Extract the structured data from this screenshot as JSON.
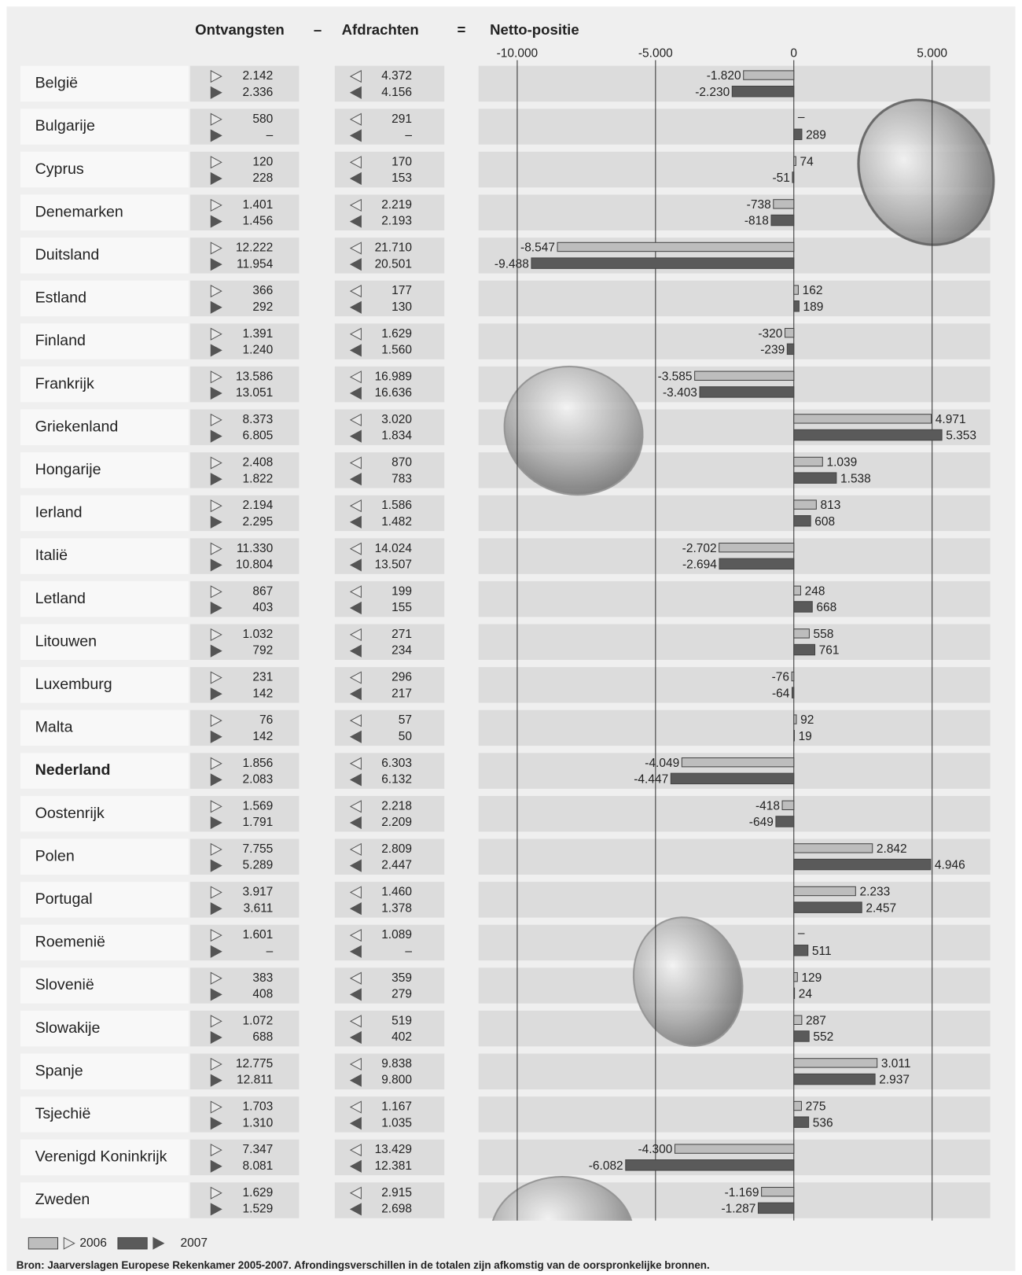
{
  "chart_data": {
    "type": "bar",
    "orientation": "horizontal",
    "headers": {
      "receipts": "Ontvangsten",
      "minus": "–",
      "payments": "Afdrachten",
      "equals": "=",
      "net": "Netto-positie"
    },
    "categories": [
      "België",
      "Bulgarije",
      "Cyprus",
      "Denemarken",
      "Duitsland",
      "Estland",
      "Finland",
      "Frankrijk",
      "Griekenland",
      "Hongarije",
      "Ierland",
      "Italië",
      "Letland",
      "Litouwen",
      "Luxemburg",
      "Malta",
      "Nederland",
      "Oostenrijk",
      "Polen",
      "Portugal",
      "Roemenië",
      "Slovenië",
      "Slowakije",
      "Spanje",
      "Tsjechië",
      "Verenigd Koninkrijk",
      "Zweden"
    ],
    "bold_category": "Nederland",
    "receipts": [
      [
        "2.142",
        "2.336"
      ],
      [
        "580",
        "–"
      ],
      [
        "120",
        "228"
      ],
      [
        "1.401",
        "1.456"
      ],
      [
        "12.222",
        "11.954"
      ],
      [
        "366",
        "292"
      ],
      [
        "1.391",
        "1.240"
      ],
      [
        "13.586",
        "13.051"
      ],
      [
        "8.373",
        "6.805"
      ],
      [
        "2.408",
        "1.822"
      ],
      [
        "2.194",
        "2.295"
      ],
      [
        "11.330",
        "10.804"
      ],
      [
        "867",
        "403"
      ],
      [
        "1.032",
        "792"
      ],
      [
        "231",
        "142"
      ],
      [
        "76",
        "142"
      ],
      [
        "1.856",
        "2.083"
      ],
      [
        "1.569",
        "1.791"
      ],
      [
        "7.755",
        "5.289"
      ],
      [
        "3.917",
        "3.611"
      ],
      [
        "1.601",
        "–"
      ],
      [
        "383",
        "408"
      ],
      [
        "1.072",
        "688"
      ],
      [
        "12.775",
        "12.811"
      ],
      [
        "1.703",
        "1.310"
      ],
      [
        "7.347",
        "8.081"
      ],
      [
        "1.629",
        "1.529"
      ]
    ],
    "payments": [
      [
        "4.372",
        "4.156"
      ],
      [
        "291",
        "–"
      ],
      [
        "170",
        "153"
      ],
      [
        "2.219",
        "2.193"
      ],
      [
        "21.710",
        "20.501"
      ],
      [
        "177",
        "130"
      ],
      [
        "1.629",
        "1.560"
      ],
      [
        "16.989",
        "16.636"
      ],
      [
        "3.020",
        "1.834"
      ],
      [
        "870",
        "783"
      ],
      [
        "1.586",
        "1.482"
      ],
      [
        "14.024",
        "13.507"
      ],
      [
        "199",
        "155"
      ],
      [
        "271",
        "234"
      ],
      [
        "296",
        "217"
      ],
      [
        "57",
        "50"
      ],
      [
        "6.303",
        "6.132"
      ],
      [
        "2.218",
        "2.209"
      ],
      [
        "2.809",
        "2.447"
      ],
      [
        "1.460",
        "1.378"
      ],
      [
        "1.089",
        "–"
      ],
      [
        "359",
        "279"
      ],
      [
        "519",
        "402"
      ],
      [
        "9.838",
        "9.800"
      ],
      [
        "1.167",
        "1.035"
      ],
      [
        "13.429",
        "12.381"
      ],
      [
        "2.915",
        "2.698"
      ]
    ],
    "series": [
      {
        "name": "2006",
        "color": "#bdbdbd",
        "values": [
          -1820,
          null,
          74,
          -738,
          -8547,
          162,
          -320,
          -3585,
          4971,
          1039,
          813,
          -2702,
          248,
          558,
          -76,
          92,
          -4049,
          -418,
          2842,
          2233,
          null,
          129,
          287,
          3011,
          275,
          -4300,
          -1169
        ],
        "value_labels": [
          "-1.820",
          "–",
          "74",
          "-738",
          "-8.547",
          "162",
          "-320",
          "-3.585",
          "4.971",
          "1.039",
          "813",
          "-2.702",
          "248",
          "558",
          "-76",
          "92",
          "-4.049",
          "-418",
          "2.842",
          "2.233",
          "–",
          "129",
          "287",
          "3.011",
          "275",
          "-4.300",
          "-1.169"
        ]
      },
      {
        "name": "2007",
        "color": "#5a5a5a",
        "values": [
          -2230,
          289,
          -51,
          -818,
          -9488,
          189,
          -239,
          -3403,
          5353,
          1538,
          608,
          -2694,
          668,
          761,
          -64,
          19,
          -4447,
          -649,
          4946,
          2457,
          511,
          24,
          552,
          2937,
          536,
          -6082,
          -1287
        ],
        "value_labels": [
          "-2.230",
          "289",
          "-51",
          "-818",
          "-9.488",
          "189",
          "-239",
          "-3.403",
          "5.353",
          "1.538",
          "608",
          "-2.694",
          "668",
          "761",
          "-64",
          "19",
          "-4.447",
          "-649",
          "4.946",
          "2.457",
          "511",
          "24",
          "552",
          "2.937",
          "536",
          "-6.082",
          "-1.287"
        ]
      }
    ],
    "xlim": [
      -11400,
      7100
    ],
    "xticks": [
      {
        "value": -10000,
        "label": "-10.000"
      },
      {
        "value": -5000,
        "label": "-5.000"
      },
      0,
      {
        "value": 5000,
        "label": "5.000"
      }
    ],
    "grid": true,
    "source": "Bron: Jaarverslagen Europese Rekenkamer 2005-2007. Afrondingsverschillen in de totalen zijn afkomstig van de oorspronkelijke bronnen."
  }
}
